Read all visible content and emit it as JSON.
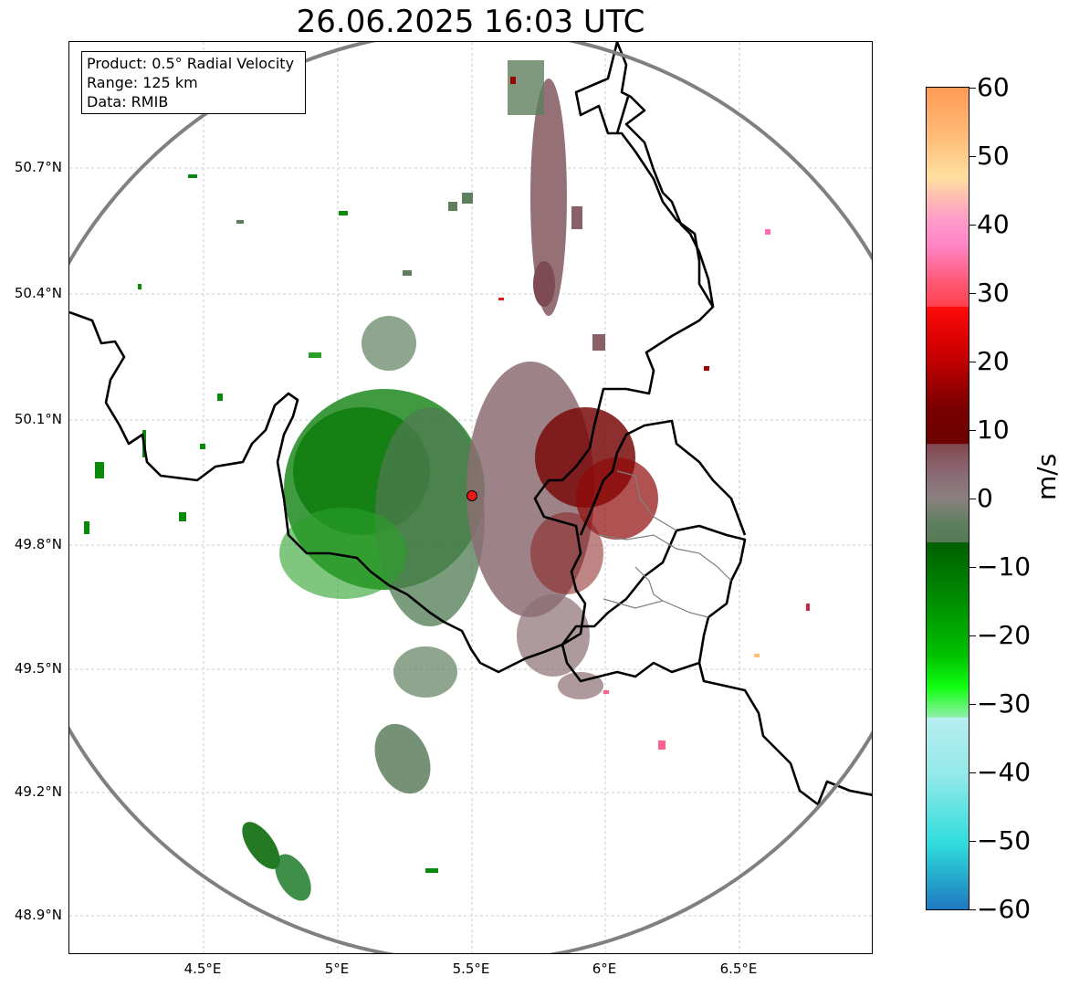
{
  "title": "26.06.2025 16:03 UTC",
  "info": {
    "product": "Product: 0.5° Radial Velocity",
    "range": "Range: 125 km",
    "data": "Data: RMIB"
  },
  "lat_labels": [
    "50.7°N",
    "50.4°N",
    "50.1°N",
    "49.8°N",
    "49.5°N",
    "49.2°N",
    "48.9°N"
  ],
  "lon_labels": [
    "4.5°E",
    "5°E",
    "5.5°E",
    "6°E",
    "6.5°E"
  ],
  "colorbar": {
    "unit": "m/s",
    "ticks": [
      "60",
      "50",
      "40",
      "30",
      "20",
      "10",
      "0",
      "−10",
      "−20",
      "−30",
      "−40",
      "−50",
      "−60"
    ]
  },
  "colors": {
    "range_ring": "#808080",
    "border": "#000000",
    "radar_site": "#e8191b"
  },
  "icons": {
    "radar": "radar-site-icon"
  }
}
